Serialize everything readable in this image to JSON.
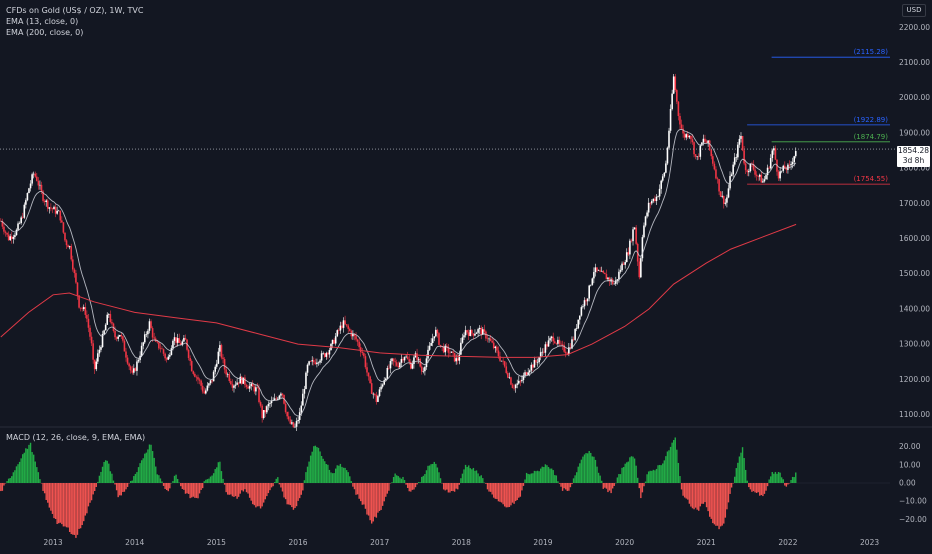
{
  "header": {
    "title": "CFDs on Gold (US$ / OZ), 1W, TVC",
    "ema13_label": "EMA (13, close, 0)",
    "ema200_label": "EMA (200, close, 0)",
    "currency": "USD"
  },
  "last_price": {
    "value": "1854.28",
    "countdown": "3d 8h"
  },
  "colors": {
    "background": "#131722",
    "up": "#ffffff",
    "down": "#f23645",
    "ema13": "#d1d4dc",
    "ema200": "#e03a47",
    "hist_up": "#26a69a",
    "hist_green": "#22ab46",
    "hist_down": "#ef5350",
    "level_blue": "#2962ff",
    "level_green": "#4caf50",
    "level_red": "#f23645"
  },
  "chart_data": [
    {
      "type": "candlestick",
      "title": "CFDs on Gold (US$ / OZ), 1W, TVC",
      "y_axis_ticks": [
        "1100.00",
        "1200.00",
        "1300.00",
        "1400.00",
        "1500.00",
        "1600.00",
        "1700.00",
        "1800.00",
        "1900.00",
        "2000.00",
        "2100.00",
        "2200.00"
      ],
      "ylim": [
        1070,
        2255
      ],
      "x_axis_ticks": [
        "2013",
        "2014",
        "2015",
        "2016",
        "2017",
        "2018",
        "2019",
        "2020",
        "2021",
        "2022",
        "2023"
      ],
      "xlim": [
        2012.35,
        2023.25
      ],
      "price_path": [
        [
          2012.36,
          1650
        ],
        [
          2012.45,
          1600
        ],
        [
          2012.55,
          1620
        ],
        [
          2012.62,
          1660
        ],
        [
          2012.7,
          1740
        ],
        [
          2012.76,
          1785
        ],
        [
          2012.8,
          1770
        ],
        [
          2012.87,
          1720
        ],
        [
          2012.95,
          1690
        ],
        [
          2013.02,
          1680
        ],
        [
          2013.08,
          1670
        ],
        [
          2013.15,
          1590
        ],
        [
          2013.2,
          1580
        ],
        [
          2013.28,
          1470
        ],
        [
          2013.32,
          1410
        ],
        [
          2013.4,
          1390
        ],
        [
          2013.47,
          1300
        ],
        [
          2013.5,
          1220
        ],
        [
          2013.55,
          1270
        ],
        [
          2013.62,
          1330
        ],
        [
          2013.68,
          1390
        ],
        [
          2013.75,
          1320
        ],
        [
          2013.82,
          1330
        ],
        [
          2013.88,
          1280
        ],
        [
          2013.97,
          1210
        ],
        [
          2014.02,
          1240
        ],
        [
          2014.1,
          1300
        ],
        [
          2014.18,
          1360
        ],
        [
          2014.25,
          1300
        ],
        [
          2014.32,
          1290
        ],
        [
          2014.4,
          1250
        ],
        [
          2014.47,
          1320
        ],
        [
          2014.55,
          1300
        ],
        [
          2014.62,
          1310
        ],
        [
          2014.7,
          1230
        ],
        [
          2014.8,
          1190
        ],
        [
          2014.85,
          1160
        ],
        [
          2014.95,
          1200
        ],
        [
          2015.04,
          1290
        ],
        [
          2015.1,
          1230
        ],
        [
          2015.2,
          1185
        ],
        [
          2015.3,
          1200
        ],
        [
          2015.4,
          1180
        ],
        [
          2015.5,
          1170
        ],
        [
          2015.56,
          1095
        ],
        [
          2015.65,
          1130
        ],
        [
          2015.72,
          1140
        ],
        [
          2015.8,
          1170
        ],
        [
          2015.88,
          1080
        ],
        [
          2015.96,
          1060
        ],
        [
          2016.02,
          1100
        ],
        [
          2016.12,
          1240
        ],
        [
          2016.2,
          1250
        ],
        [
          2016.32,
          1270
        ],
        [
          2016.4,
          1290
        ],
        [
          2016.48,
          1330
        ],
        [
          2016.55,
          1360
        ],
        [
          2016.62,
          1340
        ],
        [
          2016.72,
          1310
        ],
        [
          2016.8,
          1270
        ],
        [
          2016.88,
          1180
        ],
        [
          2016.96,
          1140
        ],
        [
          2017.05,
          1200
        ],
        [
          2017.15,
          1250
        ],
        [
          2017.22,
          1240
        ],
        [
          2017.3,
          1270
        ],
        [
          2017.38,
          1240
        ],
        [
          2017.45,
          1270
        ],
        [
          2017.52,
          1220
        ],
        [
          2017.6,
          1280
        ],
        [
          2017.68,
          1340
        ],
        [
          2017.75,
          1290
        ],
        [
          2017.85,
          1280
        ],
        [
          2017.95,
          1250
        ],
        [
          2018.04,
          1340
        ],
        [
          2018.12,
          1330
        ],
        [
          2018.22,
          1340
        ],
        [
          2018.32,
          1320
        ],
        [
          2018.4,
          1290
        ],
        [
          2018.5,
          1250
        ],
        [
          2018.58,
          1210
        ],
        [
          2018.63,
          1180
        ],
        [
          2018.72,
          1190
        ],
        [
          2018.82,
          1230
        ],
        [
          2018.92,
          1250
        ],
        [
          2019.02,
          1290
        ],
        [
          2019.12,
          1320
        ],
        [
          2019.22,
          1290
        ],
        [
          2019.3,
          1280
        ],
        [
          2019.38,
          1320
        ],
        [
          2019.46,
          1400
        ],
        [
          2019.55,
          1440
        ],
        [
          2019.62,
          1510
        ],
        [
          2019.7,
          1500
        ],
        [
          2019.78,
          1490
        ],
        [
          2019.88,
          1470
        ],
        [
          2019.96,
          1520
        ],
        [
          2020.04,
          1560
        ],
        [
          2020.12,
          1640
        ],
        [
          2020.18,
          1490
        ],
        [
          2020.22,
          1620
        ],
        [
          2020.3,
          1700
        ],
        [
          2020.4,
          1720
        ],
        [
          2020.5,
          1800
        ],
        [
          2020.56,
          1950
        ],
        [
          2020.6,
          2060
        ],
        [
          2020.66,
          1950
        ],
        [
          2020.72,
          1890
        ],
        [
          2020.8,
          1900
        ],
        [
          2020.88,
          1820
        ],
        [
          2020.96,
          1880
        ],
        [
          2021.02,
          1870
        ],
        [
          2021.1,
          1800
        ],
        [
          2021.18,
          1720
        ],
        [
          2021.24,
          1700
        ],
        [
          2021.3,
          1780
        ],
        [
          2021.38,
          1850
        ],
        [
          2021.42,
          1900
        ],
        [
          2021.48,
          1790
        ],
        [
          2021.55,
          1810
        ],
        [
          2021.62,
          1780
        ],
        [
          2021.7,
          1760
        ],
        [
          2021.76,
          1800
        ],
        [
          2021.82,
          1860
        ],
        [
          2021.88,
          1780
        ],
        [
          2021.96,
          1800
        ],
        [
          2022.02,
          1800
        ],
        [
          2022.1,
          1854.28
        ]
      ],
      "ema_200": [
        [
          2012.36,
          1320
        ],
        [
          2012.7,
          1390
        ],
        [
          2013.0,
          1440
        ],
        [
          2013.2,
          1445
        ],
        [
          2013.5,
          1420
        ],
        [
          2014.0,
          1390
        ],
        [
          2014.5,
          1375
        ],
        [
          2015.0,
          1360
        ],
        [
          2015.5,
          1330
        ],
        [
          2016.0,
          1300
        ],
        [
          2016.5,
          1290
        ],
        [
          2017.0,
          1275
        ],
        [
          2017.5,
          1268
        ],
        [
          2018.0,
          1265
        ],
        [
          2018.5,
          1262
        ],
        [
          2018.9,
          1262
        ],
        [
          2019.3,
          1270
        ],
        [
          2019.6,
          1300
        ],
        [
          2020.0,
          1350
        ],
        [
          2020.3,
          1400
        ],
        [
          2020.6,
          1470
        ],
        [
          2021.0,
          1530
        ],
        [
          2021.3,
          1570
        ],
        [
          2021.7,
          1605
        ],
        [
          2022.1,
          1640
        ]
      ],
      "price_levels": [
        {
          "label": "(2115.28)",
          "value": 2115.28,
          "color": "#2962ff",
          "x_start": 2021.8
        },
        {
          "label": "(1922.89)",
          "value": 1922.89,
          "color": "#2962ff",
          "x_start": 2021.5
        },
        {
          "label": "(1874.79)",
          "value": 1874.79,
          "color": "#4caf50",
          "x_start": 2021.8
        },
        {
          "label": "(1754.55)",
          "value": 1754.55,
          "color": "#f23645",
          "x_start": 2021.5
        }
      ]
    },
    {
      "type": "bar",
      "title": "MACD (12, 26, close, 9, EMA, EMA)",
      "y_axis_ticks": [
        "20.00",
        "10.00",
        "0.00",
        "−10.00",
        "−20.00"
      ],
      "ylim": [
        -27,
        27
      ],
      "histogram_path": [
        [
          2012.36,
          -5
        ],
        [
          2012.5,
          5
        ],
        [
          2012.62,
          15
        ],
        [
          2012.72,
          22
        ],
        [
          2012.82,
          5
        ],
        [
          2012.92,
          -10
        ],
        [
          2013.05,
          -22
        ],
        [
          2013.18,
          -25
        ],
        [
          2013.28,
          -30
        ],
        [
          2013.4,
          -18
        ],
        [
          2013.5,
          -5
        ],
        [
          2013.58,
          5
        ],
        [
          2013.65,
          14
        ],
        [
          2013.72,
          5
        ],
        [
          2013.8,
          -8
        ],
        [
          2013.9,
          -3
        ],
        [
          2014.02,
          5
        ],
        [
          2014.12,
          16
        ],
        [
          2014.2,
          22
        ],
        [
          2014.28,
          5
        ],
        [
          2014.4,
          -5
        ],
        [
          2014.5,
          5
        ],
        [
          2014.58,
          -3
        ],
        [
          2014.68,
          -8
        ],
        [
          2014.78,
          -8
        ],
        [
          2014.85,
          0
        ],
        [
          2014.95,
          5
        ],
        [
          2015.04,
          12
        ],
        [
          2015.12,
          -5
        ],
        [
          2015.25,
          -8
        ],
        [
          2015.35,
          -3
        ],
        [
          2015.45,
          -12
        ],
        [
          2015.55,
          -14
        ],
        [
          2015.65,
          -5
        ],
        [
          2015.75,
          3
        ],
        [
          2015.85,
          -10
        ],
        [
          2015.95,
          -15
        ],
        [
          2016.05,
          -5
        ],
        [
          2016.12,
          10
        ],
        [
          2016.2,
          22
        ],
        [
          2016.3,
          15
        ],
        [
          2016.42,
          5
        ],
        [
          2016.5,
          10
        ],
        [
          2016.6,
          8
        ],
        [
          2016.7,
          -5
        ],
        [
          2016.8,
          -12
        ],
        [
          2016.9,
          -22
        ],
        [
          2017.0,
          -16
        ],
        [
          2017.1,
          -5
        ],
        [
          2017.18,
          5
        ],
        [
          2017.28,
          3
        ],
        [
          2017.38,
          -5
        ],
        [
          2017.48,
          0
        ],
        [
          2017.58,
          8
        ],
        [
          2017.68,
          12
        ],
        [
          2017.78,
          -3
        ],
        [
          2017.88,
          -5
        ],
        [
          2017.96,
          -3
        ],
        [
          2018.05,
          10
        ],
        [
          2018.15,
          8
        ],
        [
          2018.25,
          3
        ],
        [
          2018.35,
          -5
        ],
        [
          2018.45,
          -10
        ],
        [
          2018.55,
          -14
        ],
        [
          2018.62,
          -12
        ],
        [
          2018.72,
          -8
        ],
        [
          2018.8,
          5
        ],
        [
          2018.92,
          6
        ],
        [
          2019.02,
          10
        ],
        [
          2019.12,
          8
        ],
        [
          2019.22,
          -3
        ],
        [
          2019.32,
          -5
        ],
        [
          2019.4,
          5
        ],
        [
          2019.48,
          15
        ],
        [
          2019.58,
          18
        ],
        [
          2019.66,
          10
        ],
        [
          2019.74,
          -3
        ],
        [
          2019.84,
          -5
        ],
        [
          2019.94,
          5
        ],
        [
          2020.02,
          12
        ],
        [
          2020.12,
          15
        ],
        [
          2020.2,
          -8
        ],
        [
          2020.28,
          5
        ],
        [
          2020.38,
          8
        ],
        [
          2020.48,
          12
        ],
        [
          2020.56,
          20
        ],
        [
          2020.62,
          25
        ],
        [
          2020.7,
          -5
        ],
        [
          2020.8,
          -12
        ],
        [
          2020.9,
          -15
        ],
        [
          2020.98,
          -10
        ],
        [
          2021.05,
          -20
        ],
        [
          2021.15,
          -25
        ],
        [
          2021.22,
          -22
        ],
        [
          2021.3,
          -5
        ],
        [
          2021.38,
          10
        ],
        [
          2021.44,
          20
        ],
        [
          2021.52,
          -3
        ],
        [
          2021.6,
          -5
        ],
        [
          2021.7,
          -8
        ],
        [
          2021.8,
          5
        ],
        [
          2021.9,
          6
        ],
        [
          2021.98,
          -3
        ],
        [
          2022.05,
          3
        ],
        [
          2022.12,
          6
        ]
      ]
    }
  ]
}
